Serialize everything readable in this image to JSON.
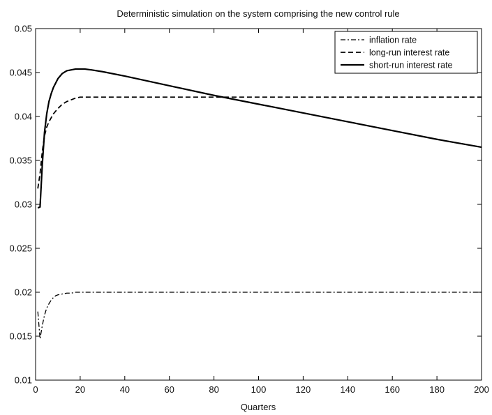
{
  "chart_data": {
    "type": "line",
    "title": "Deterministic simulation on the system comprising the new control rule",
    "xlabel": "Quarters",
    "ylabel": "",
    "xlim": [
      0,
      200
    ],
    "ylim": [
      0.01,
      0.05
    ],
    "xticks": [
      0,
      20,
      40,
      60,
      80,
      100,
      120,
      140,
      160,
      180,
      200
    ],
    "yticks": [
      0.01,
      0.015,
      0.02,
      0.025,
      0.03,
      0.035,
      0.04,
      0.045,
      0.05
    ],
    "ytick_labels": [
      "0.01",
      "0.015",
      "0.02",
      "0.025",
      "0.03",
      "0.035",
      "0.04",
      "0.045",
      "0.05"
    ],
    "grid": false,
    "legend_position": "top-right",
    "series": [
      {
        "name": "inflation rate",
        "style": "dashdot",
        "x": [
          1,
          2,
          3,
          4,
          5,
          6,
          7,
          8,
          9,
          10,
          12,
          14,
          16,
          18,
          20,
          25,
          30,
          40,
          60,
          80,
          100,
          120,
          140,
          160,
          180,
          200
        ],
        "y": [
          0.0178,
          0.0147,
          0.0162,
          0.0174,
          0.0182,
          0.0187,
          0.0191,
          0.0194,
          0.0196,
          0.0197,
          0.0198,
          0.0199,
          0.0199,
          0.02,
          0.02,
          0.02,
          0.02,
          0.02,
          0.02,
          0.02,
          0.02,
          0.02,
          0.02,
          0.02,
          0.02,
          0.02
        ]
      },
      {
        "name": "long-run interest rate",
        "style": "dashed",
        "x": [
          1,
          2,
          3,
          4,
          5,
          6,
          8,
          10,
          12,
          14,
          16,
          18,
          20,
          25,
          30,
          40,
          60,
          80,
          100,
          120,
          140,
          160,
          180,
          200
        ],
        "y": [
          0.0318,
          0.0335,
          0.036,
          0.0378,
          0.0388,
          0.0394,
          0.0403,
          0.0409,
          0.0414,
          0.0417,
          0.0419,
          0.0421,
          0.0422,
          0.0422,
          0.0422,
          0.0422,
          0.0422,
          0.0422,
          0.0422,
          0.0422,
          0.0422,
          0.0422,
          0.0422,
          0.0422
        ]
      },
      {
        "name": "short-run interest rate",
        "style": "solid",
        "x": [
          1,
          2,
          3,
          4,
          5,
          6,
          7,
          8,
          10,
          12,
          14,
          16,
          18,
          20,
          22,
          25,
          30,
          40,
          60,
          80,
          100,
          120,
          140,
          160,
          180,
          200
        ],
        "y": [
          0.0296,
          0.0297,
          0.0345,
          0.0382,
          0.0403,
          0.0417,
          0.0426,
          0.0433,
          0.0443,
          0.0449,
          0.0452,
          0.0453,
          0.0454,
          0.0454,
          0.0454,
          0.0453,
          0.0451,
          0.0446,
          0.0435,
          0.0424,
          0.0414,
          0.0404,
          0.0394,
          0.0384,
          0.0374,
          0.0365
        ]
      }
    ]
  }
}
